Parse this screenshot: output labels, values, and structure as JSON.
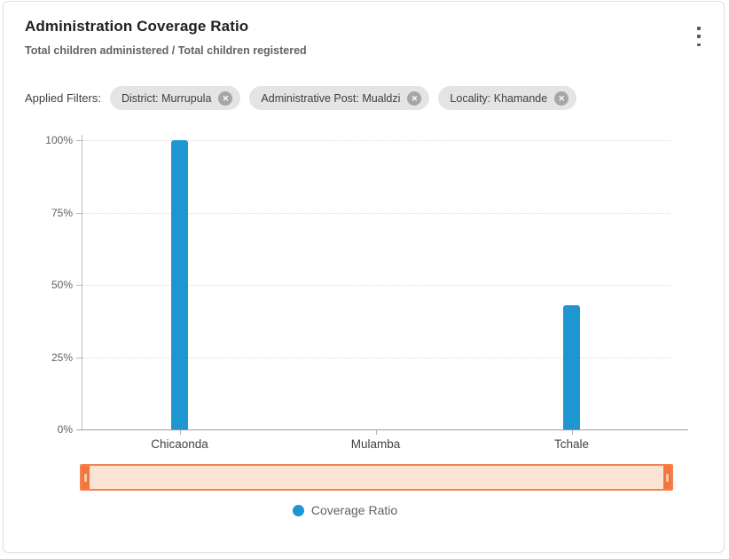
{
  "header": {
    "title": "Administration Coverage Ratio",
    "subtitle": "Total children administered / Total children registered"
  },
  "filters": {
    "label": "Applied Filters:",
    "chips": [
      {
        "label": "District: Murrupula"
      },
      {
        "label": "Administrative Post: Mualdzi"
      },
      {
        "label": "Locality: Khamande"
      }
    ],
    "remove_icon": "close-icon"
  },
  "chart_data": {
    "type": "bar",
    "title": "Administration Coverage Ratio",
    "categories": [
      "Chicaonda",
      "Mulamba",
      "Tchale"
    ],
    "series": [
      {
        "name": "Coverage Ratio",
        "values": [
          100,
          0,
          43
        ]
      }
    ],
    "ylabel": "",
    "xlabel": "",
    "ylim": [
      0,
      100
    ],
    "y_ticks": [
      "100%",
      "75%",
      "50%",
      "25%",
      "0%"
    ],
    "grid": "horizontal-dotted",
    "bar_color": "#1e96d2",
    "legend": {
      "label": "Coverage Ratio",
      "position": "bottom-center",
      "marker_color": "#1e96d2"
    }
  },
  "range_selector": {
    "fill_color": "#fce4d5",
    "border_color": "#f2854e",
    "handle_color": "#f3763c"
  },
  "icons": {
    "menu": "kebab-menu-icon"
  }
}
